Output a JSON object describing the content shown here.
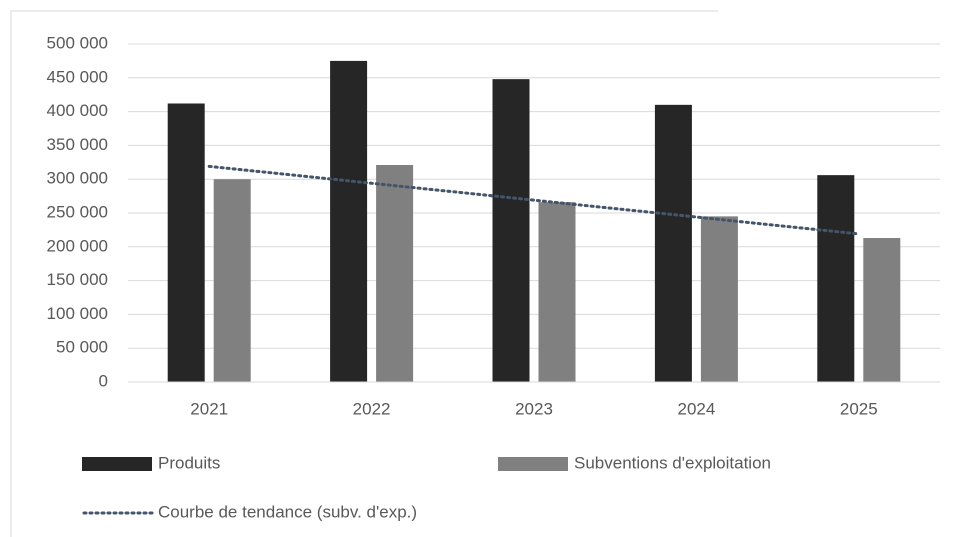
{
  "chart_data": {
    "type": "bar",
    "categories": [
      "2021",
      "2022",
      "2023",
      "2024",
      "2025"
    ],
    "series": [
      {
        "name": "Produits",
        "color": "#262626",
        "values": [
          412000,
          475000,
          448000,
          410000,
          306000
        ]
      },
      {
        "name": "Subventions d'exploitation",
        "color": "#808080",
        "values": [
          300000,
          321000,
          266000,
          245000,
          213000
        ]
      },
      {
        "name": "Courbe de tendance (subv. d'exp.)",
        "color": "#44546a",
        "type": "trendline",
        "values": [
          319000,
          294000,
          269000,
          244000,
          219000
        ]
      }
    ],
    "ylim": [
      0,
      500000
    ],
    "yticks": [
      {
        "value": 0,
        "label": "0"
      },
      {
        "value": 50000,
        "label": "50 000"
      },
      {
        "value": 100000,
        "label": "100 000"
      },
      {
        "value": 150000,
        "label": "150 000"
      },
      {
        "value": 200000,
        "label": "200 000"
      },
      {
        "value": 250000,
        "label": "250 000"
      },
      {
        "value": 300000,
        "label": "300 000"
      },
      {
        "value": 350000,
        "label": "350 000"
      },
      {
        "value": 400000,
        "label": "400 000"
      },
      {
        "value": 450000,
        "label": "450 000"
      },
      {
        "value": 500000,
        "label": "500 000"
      }
    ],
    "grid": true,
    "legend": "bottom"
  }
}
